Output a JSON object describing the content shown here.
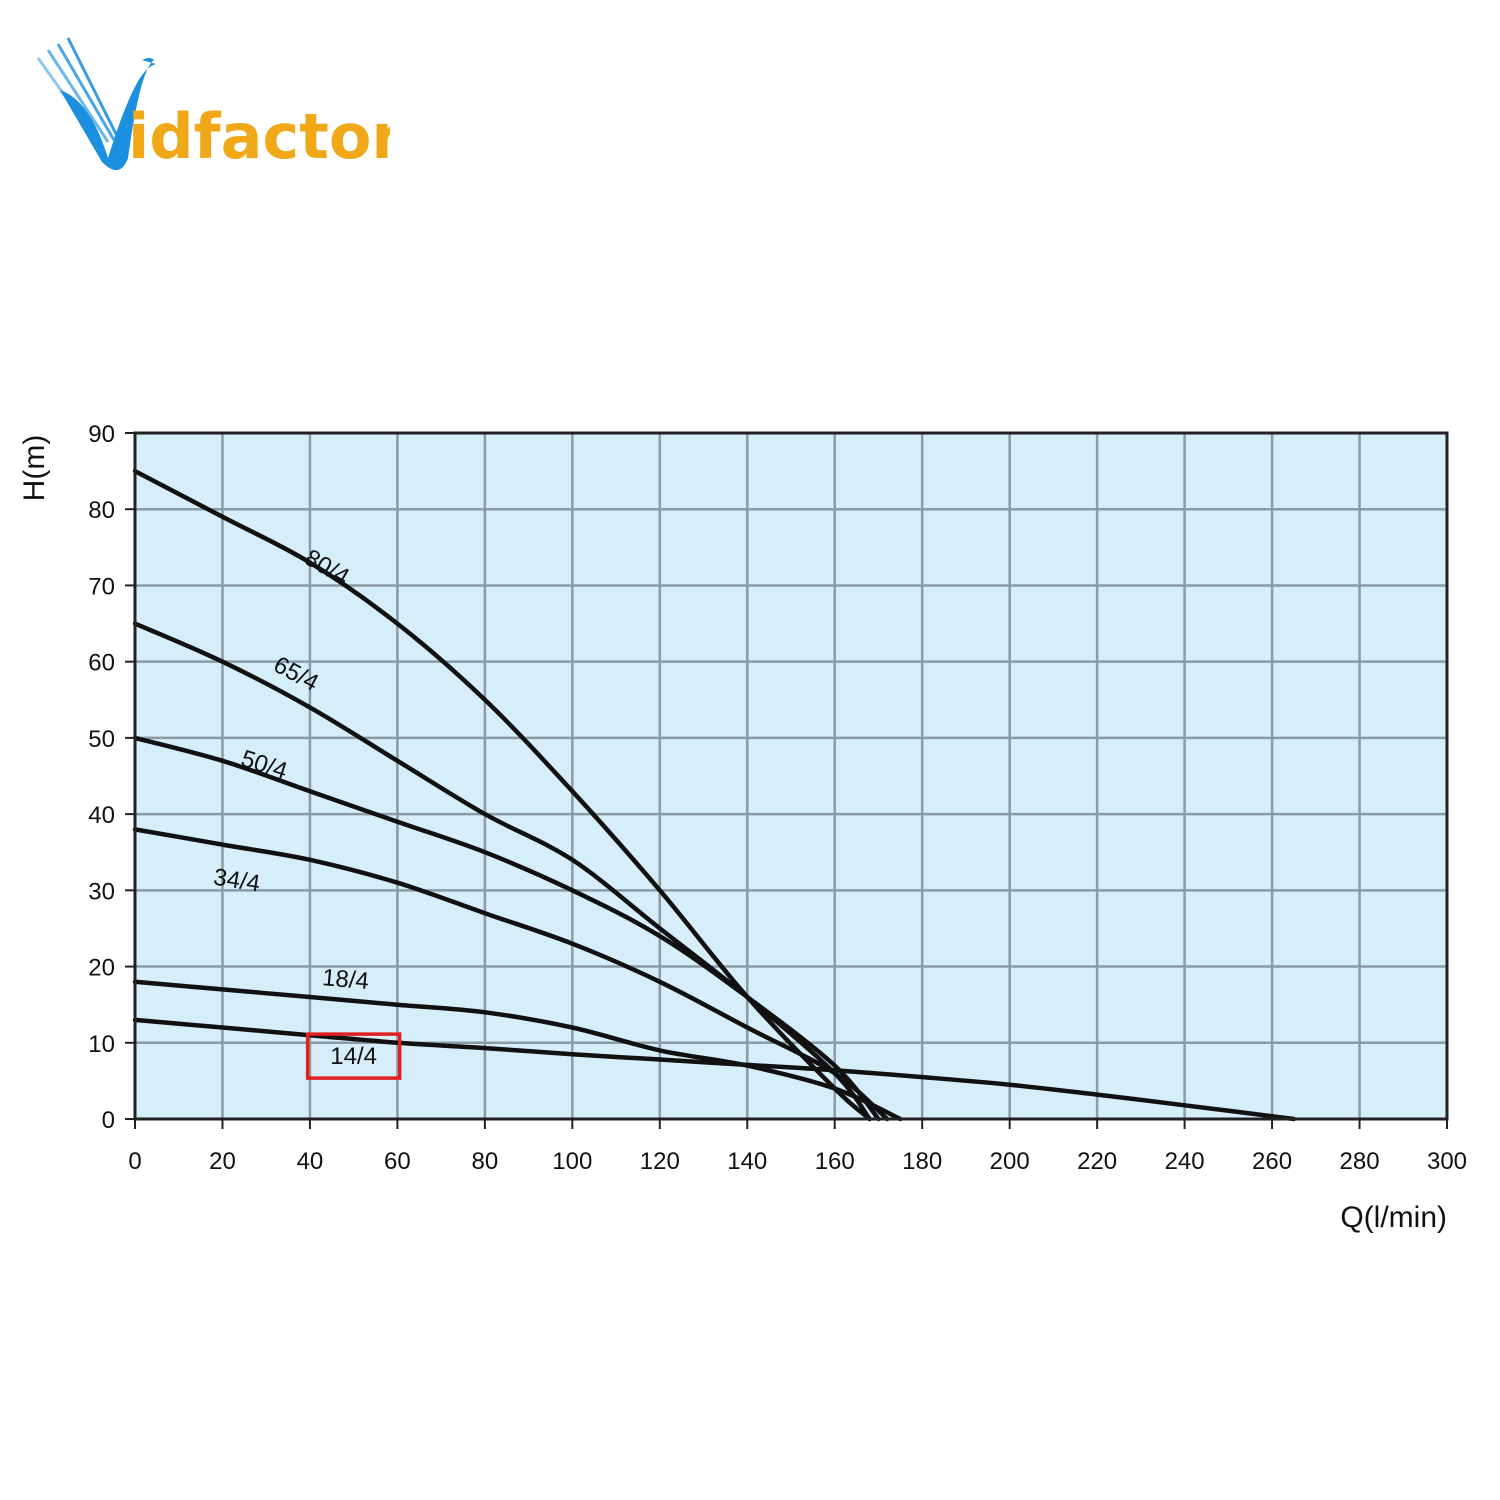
{
  "brand": {
    "logo_text": "idfactor",
    "logo_letter": "V",
    "colors": {
      "blue": "#1b8fe0",
      "orange": "#f0a818"
    }
  },
  "chart_data": {
    "type": "line",
    "title": "",
    "xlabel": "Q(l/min)",
    "ylabel": "H(m)",
    "xlim": [
      0,
      300
    ],
    "ylim": [
      0,
      90
    ],
    "x_ticks": [
      "0",
      "20",
      "40",
      "60",
      "80",
      "100",
      "120",
      "140",
      "160",
      "180",
      "200",
      "220",
      "240",
      "260",
      "280",
      "300"
    ],
    "y_ticks": [
      "0",
      "10",
      "20",
      "30",
      "40",
      "50",
      "60",
      "70",
      "80",
      "90"
    ],
    "grid": true,
    "background_color": "#d6eef9",
    "grid_color": "#8a9ba6",
    "line_color": "#111111",
    "highlight_color": "#e02020",
    "highlighted_series": "14/4",
    "series": [
      {
        "name": "80/4",
        "x": [
          0,
          20,
          40,
          60,
          80,
          100,
          120,
          140,
          160,
          168
        ],
        "y": [
          85,
          79,
          73,
          65,
          55,
          43,
          30,
          16,
          4,
          0
        ]
      },
      {
        "name": "65/4",
        "x": [
          0,
          20,
          40,
          60,
          80,
          100,
          120,
          140,
          160,
          168
        ],
        "y": [
          65,
          60,
          54,
          47,
          40,
          34,
          25,
          16,
          6,
          0
        ]
      },
      {
        "name": "50/4",
        "x": [
          0,
          20,
          40,
          60,
          80,
          100,
          120,
          140,
          160,
          170
        ],
        "y": [
          50,
          47,
          43,
          39,
          35,
          30,
          24,
          16,
          7,
          0
        ]
      },
      {
        "name": "34/4",
        "x": [
          0,
          20,
          40,
          60,
          80,
          100,
          120,
          140,
          160,
          172
        ],
        "y": [
          38,
          36,
          34,
          31,
          27,
          23,
          18,
          12,
          6,
          0
        ]
      },
      {
        "name": "18/4",
        "x": [
          0,
          20,
          40,
          60,
          80,
          100,
          120,
          140,
          160,
          175
        ],
        "y": [
          18,
          17,
          16,
          15,
          14,
          12,
          9,
          7,
          4,
          0
        ]
      },
      {
        "name": "14/4",
        "x": [
          0,
          20,
          40,
          60,
          80,
          100,
          120,
          140,
          160,
          180,
          200,
          220,
          240,
          265
        ],
        "y": [
          13,
          12,
          11,
          10,
          9.3,
          8.5,
          7.8,
          7.1,
          6.4,
          5.5,
          4.5,
          3.2,
          1.8,
          0
        ]
      }
    ]
  }
}
